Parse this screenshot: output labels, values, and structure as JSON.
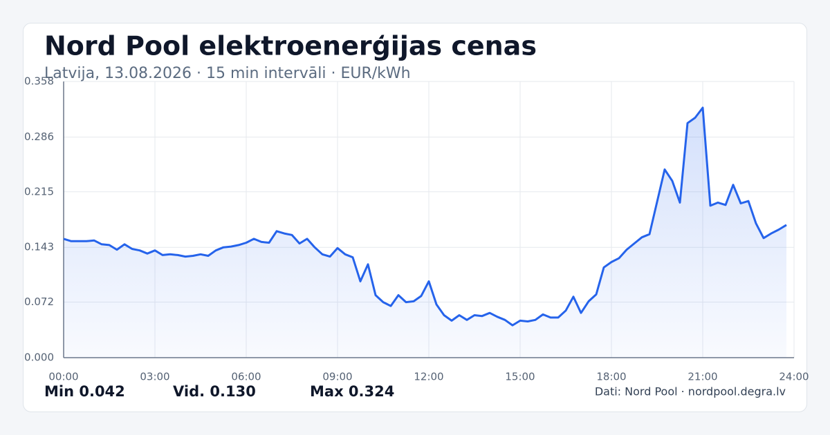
{
  "chart_data": {
    "type": "line",
    "title": "Nord Pool elektroenerģijas cenas",
    "subtitle": "Latvija, 13.08.2026 · 15 min intervāli · EUR/kWh",
    "x": [
      0,
      0.25,
      0.5,
      0.75,
      1,
      1.25,
      1.5,
      1.75,
      2,
      2.25,
      2.5,
      2.75,
      3,
      3.25,
      3.5,
      3.75,
      4,
      4.25,
      4.5,
      4.75,
      5,
      5.25,
      5.5,
      5.75,
      6,
      6.25,
      6.5,
      6.75,
      7,
      7.25,
      7.5,
      7.75,
      8,
      8.25,
      8.5,
      8.75,
      9,
      9.25,
      9.5,
      9.75,
      10,
      10.25,
      10.5,
      10.75,
      11,
      11.25,
      11.5,
      11.75,
      12,
      12.25,
      12.5,
      12.75,
      13,
      13.25,
      13.5,
      13.75,
      14,
      14.25,
      14.5,
      14.75,
      15,
      15.25,
      15.5,
      15.75,
      16,
      16.25,
      16.5,
      16.75,
      17,
      17.25,
      17.5,
      17.75,
      18,
      18.25,
      18.5,
      18.75,
      19,
      19.25,
      19.5,
      19.75,
      20,
      20.25,
      20.5,
      20.75,
      21,
      21.25,
      21.5,
      21.75,
      22,
      22.25,
      22.5,
      22.75,
      23,
      23.25,
      23.5,
      23.75
    ],
    "series": [
      {
        "name": "EUR/kWh",
        "color": "#2563eb",
        "values": [
          0.154,
          0.151,
          0.151,
          0.151,
          0.152,
          0.147,
          0.146,
          0.14,
          0.147,
          0.141,
          0.139,
          0.135,
          0.139,
          0.133,
          0.134,
          0.133,
          0.131,
          0.132,
          0.134,
          0.132,
          0.139,
          0.143,
          0.144,
          0.146,
          0.149,
          0.154,
          0.15,
          0.149,
          0.164,
          0.161,
          0.159,
          0.148,
          0.154,
          0.143,
          0.134,
          0.131,
          0.142,
          0.134,
          0.13,
          0.099,
          0.121,
          0.081,
          0.072,
          0.067,
          0.081,
          0.072,
          0.073,
          0.08,
          0.099,
          0.069,
          0.055,
          0.048,
          0.055,
          0.049,
          0.055,
          0.054,
          0.058,
          0.053,
          0.049,
          0.042,
          0.048,
          0.047,
          0.049,
          0.056,
          0.052,
          0.052,
          0.061,
          0.079,
          0.058,
          0.073,
          0.082,
          0.117,
          0.124,
          0.129,
          0.14,
          0.148,
          0.156,
          0.16,
          0.202,
          0.244,
          0.229,
          0.201,
          0.304,
          0.311,
          0.324,
          0.197,
          0.201,
          0.198,
          0.224,
          0.2,
          0.203,
          0.174,
          0.155,
          0.161,
          0.166,
          0.172
        ]
      }
    ],
    "xlim": [
      0,
      24
    ],
    "xticks": [
      {
        "value": 0,
        "label": "00:00"
      },
      {
        "value": 3,
        "label": "03:00"
      },
      {
        "value": 6,
        "label": "06:00"
      },
      {
        "value": 9,
        "label": "09:00"
      },
      {
        "value": 12,
        "label": "12:00"
      },
      {
        "value": 15,
        "label": "15:00"
      },
      {
        "value": 18,
        "label": "18:00"
      },
      {
        "value": 21,
        "label": "21:00"
      },
      {
        "value": 24,
        "label": "24:00"
      }
    ],
    "ylim": [
      0,
      0.358
    ],
    "yticks": [
      {
        "value": 0,
        "label": "0.000"
      },
      0.072,
      0.143,
      0.215,
      0.286,
      0.358
    ],
    "grid": true,
    "area_fill": true,
    "stats": [
      "Min 0.042",
      "Vid. 0.130",
      "Max 0.324"
    ],
    "source": "Dati: Nord Pool · nordpool.degra.lv"
  }
}
